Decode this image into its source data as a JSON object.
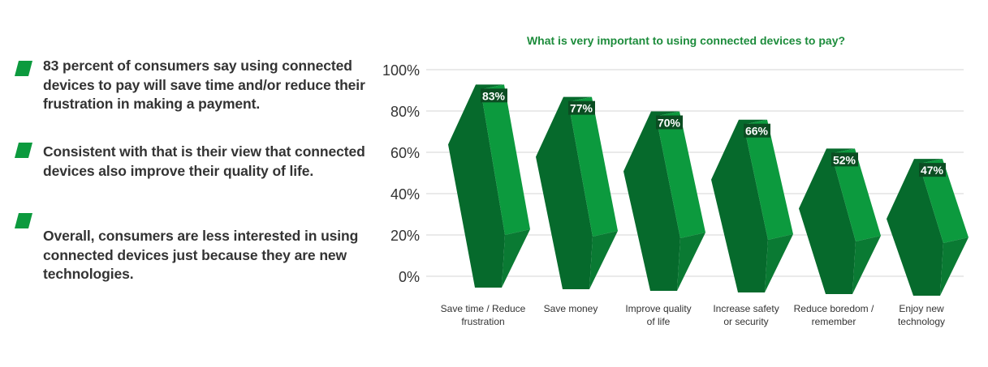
{
  "bullets": [
    "83 percent of consumers say using connected devices to pay will save time and/or reduce their frustration in making a payment.",
    "Consistent with that is their view that connected devices also improve their quality of life.",
    "Overall, consumers are less interested in using connected devices just because they are new technologies."
  ],
  "colors": {
    "accent": "#0c9a3e",
    "dark": "#066a2c",
    "mid": "#0a7a33",
    "label_bg": "#0b4d22"
  },
  "chart_data": {
    "type": "bar",
    "title": "What is very important to using connected devices to pay?",
    "categories": [
      [
        "Save time / Reduce",
        "frustration"
      ],
      [
        "Save money",
        ""
      ],
      [
        "Improve quality",
        "of life"
      ],
      [
        "Increase safety",
        "or security"
      ],
      [
        "Reduce boredom /",
        "remember"
      ],
      [
        "Enjoy new",
        "technology"
      ]
    ],
    "values": [
      83,
      77,
      70,
      66,
      52,
      47
    ],
    "value_labels": [
      "83%",
      "77%",
      "70%",
      "66%",
      "52%",
      "47%"
    ],
    "yticks": [
      "0%",
      "20%",
      "40%",
      "60%",
      "80%",
      "100%"
    ],
    "ylim": [
      0,
      100
    ],
    "grid": true,
    "xlabel": "",
    "ylabel": ""
  }
}
